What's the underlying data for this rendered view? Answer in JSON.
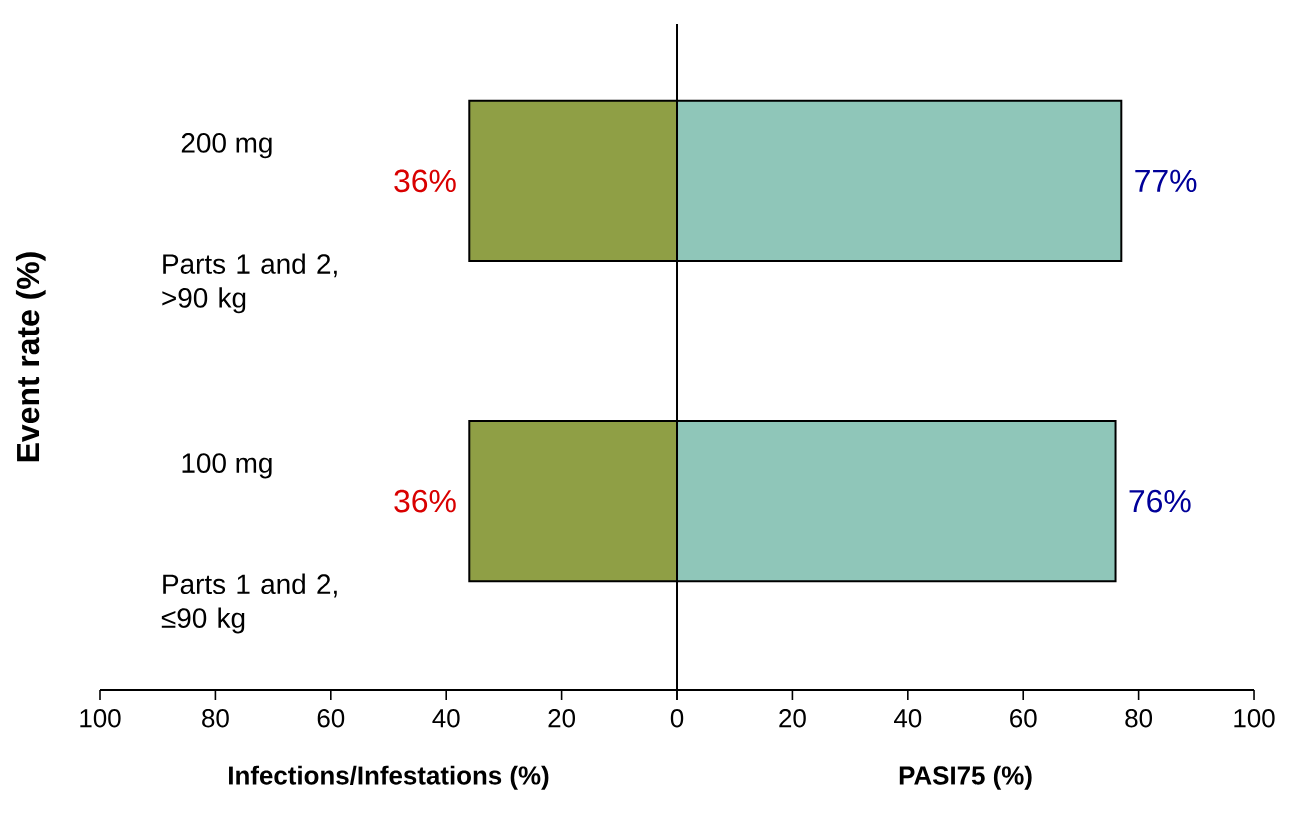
{
  "chart_data": [
    {
      "type": "bar",
      "orientation": "horizontal",
      "ylabel": "Event rate (%)",
      "xlabel": "Infections/Infestations (%)",
      "categories": [
        "200 mg",
        "100 mg"
      ],
      "annotations": [
        "Parts 1 and 2, >90 kg",
        "Parts 1 and 2, ≤90 kg"
      ],
      "xlim": [
        100,
        0
      ],
      "xticks": [
        100,
        80,
        60,
        40,
        20,
        {
          "value": 0,
          "label": null
        }
      ],
      "series": [
        {
          "color": "#8f9f45",
          "values": [
            36,
            36
          ],
          "value_labels": [
            "36%",
            "36%"
          ]
        }
      ]
    },
    {
      "type": "bar",
      "orientation": "horizontal",
      "xlabel": "PASI75 (%)",
      "tick_labels": "x",
      "categories": [
        null,
        null
      ],
      "xlim": [
        0,
        100
      ],
      "xticks": [
        0,
        20,
        40,
        60,
        80,
        100
      ],
      "series": [
        {
          "color": "#8fc6b9",
          "values": [
            77,
            76
          ],
          "value_labels": [
            "77%",
            "76%"
          ]
        }
      ]
    }
  ]
}
